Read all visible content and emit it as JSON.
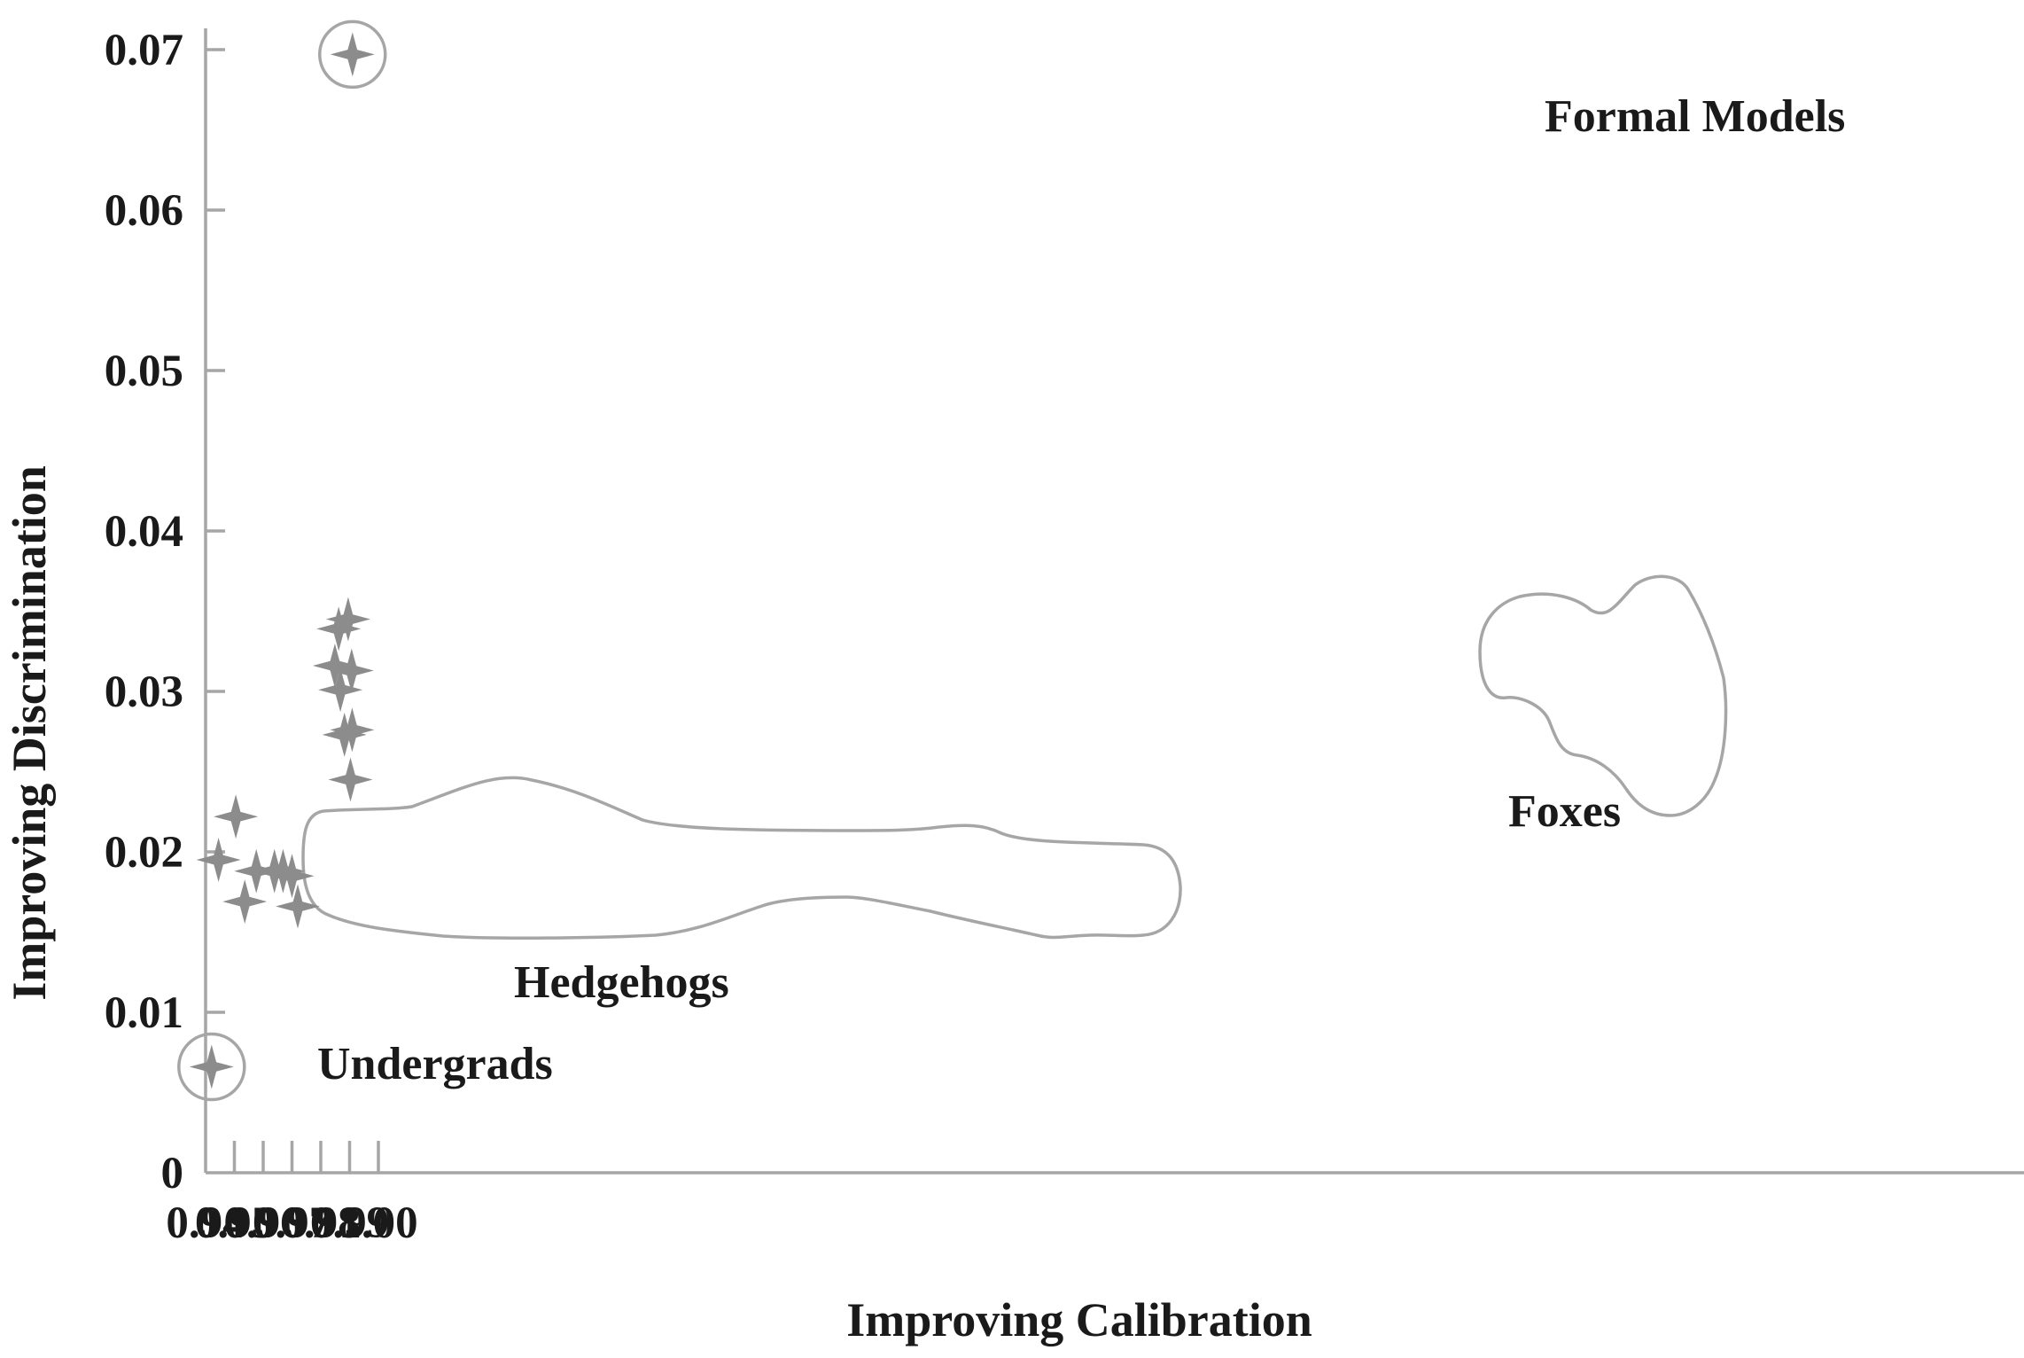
{
  "chart_data": {
    "type": "scatter",
    "title": "",
    "xlabel": "Improving Calibration",
    "ylabel": "Improving Discrimination",
    "xlim": [
      0.94,
      1.003
    ],
    "ylim": [
      0,
      0.071
    ],
    "x_ticks": [
      "0.94",
      "0.95",
      "0.96",
      "0.97",
      "0.98",
      "0.99",
      "1.00"
    ],
    "y_ticks": [
      "0",
      "0.01",
      "0.02",
      "0.03",
      "0.04",
      "0.05",
      "0.06",
      "0.07"
    ],
    "grid": false,
    "marker": "four-point-star",
    "colors": {
      "marker": "#8c8c8c",
      "axis": "#a6a6a6",
      "text": "#1a1a1a"
    },
    "groups": [
      {
        "label": "Hedgehogs",
        "enclosure": "outline",
        "points": [
          {
            "x": 0.9445,
            "y": 0.0195
          },
          {
            "x": 0.9505,
            "y": 0.0222
          },
          {
            "x": 0.9536,
            "y": 0.0169
          },
          {
            "x": 0.9576,
            "y": 0.0188
          },
          {
            "x": 0.9639,
            "y": 0.0188
          },
          {
            "x": 0.9669,
            "y": 0.0188
          },
          {
            "x": 0.97,
            "y": 0.0185
          },
          {
            "x": 0.972,
            "y": 0.0166
          }
        ]
      },
      {
        "label": "Foxes",
        "enclosure": "outline",
        "points": [
          {
            "x": 0.9849,
            "y": 0.0316
          },
          {
            "x": 0.9862,
            "y": 0.0339
          },
          {
            "x": 0.9868,
            "y": 0.0301
          },
          {
            "x": 0.9882,
            "y": 0.0273
          },
          {
            "x": 0.9895,
            "y": 0.0345
          },
          {
            "x": 0.9907,
            "y": 0.0313
          },
          {
            "x": 0.9909,
            "y": 0.0276
          },
          {
            "x": 0.9903,
            "y": 0.0245
          }
        ]
      },
      {
        "label": "Undergrads",
        "enclosure": "circle",
        "points": [
          {
            "x": 0.9421,
            "y": 0.0066
          }
        ]
      },
      {
        "label": "Formal Models",
        "enclosure": "circle",
        "points": [
          {
            "x": 0.991,
            "y": 0.0697
          }
        ]
      }
    ]
  }
}
